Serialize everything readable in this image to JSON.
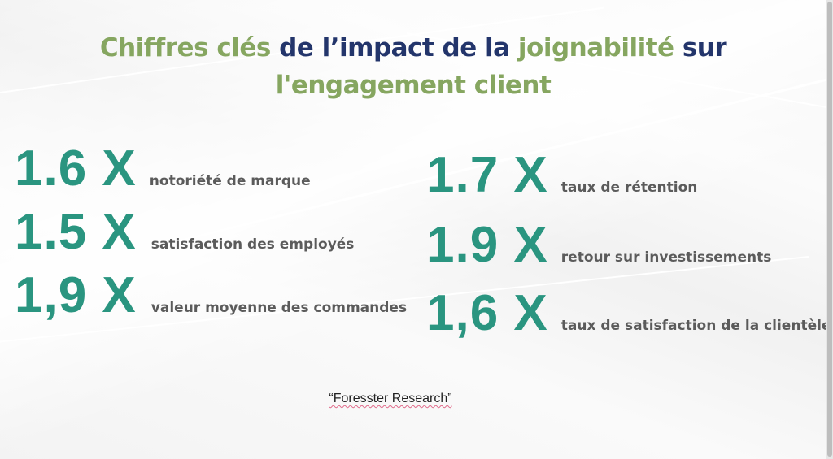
{
  "title": {
    "part1": "Chiffres clés",
    "part2": "de l’impact de la",
    "part3": "joignabilité",
    "part4": "sur",
    "line2": "l'engagement client"
  },
  "colors": {
    "title_green": "#86a660",
    "title_navy": "#23356b",
    "stat_value": "#2a9580",
    "stat_label": "#5b5b5b",
    "spellcheck_underline": "#e06a8a"
  },
  "stats_left": [
    {
      "value": "1.6 X",
      "label": "notoriété de marque"
    },
    {
      "value": "1.5 X",
      "label": "satisfaction des employés"
    },
    {
      "value": "1,9 X",
      "label": "valeur moyenne des commandes"
    }
  ],
  "stats_right": [
    {
      "value": "1.7 X",
      "label": "taux de rétention"
    },
    {
      "value": "1.9 X",
      "label": "retour sur investissements"
    },
    {
      "value": "1,6 X",
      "label": "taux de satisfaction de la clientèle"
    }
  ],
  "source": "“Foresster Research”"
}
